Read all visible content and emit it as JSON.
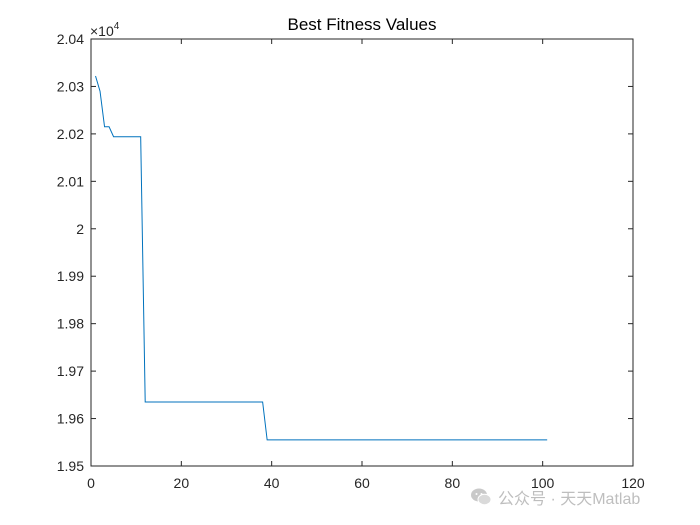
{
  "chart_data": {
    "type": "line",
    "title": "Best Fitness Values",
    "xlabel": "",
    "ylabel": "",
    "xlim": [
      0,
      120
    ],
    "ylim": [
      1.95,
      2.04
    ],
    "y_exponent_label": "×10",
    "y_exponent_power": "4",
    "x_ticks": [
      0,
      20,
      40,
      60,
      80,
      100,
      120
    ],
    "x_tick_labels": [
      "0",
      "20",
      "40",
      "60",
      "80",
      "100",
      "120"
    ],
    "y_ticks": [
      1.95,
      1.96,
      1.97,
      1.98,
      1.99,
      2.0,
      2.01,
      2.02,
      2.03,
      2.04
    ],
    "y_tick_labels": [
      "1.95",
      "1.96",
      "1.97",
      "1.98",
      "1.99",
      "2",
      "2.01",
      "2.02",
      "2.03",
      "2.04"
    ],
    "grid": false,
    "series": [
      {
        "color": "#0072BD",
        "x": [
          1,
          2,
          3,
          4,
          5,
          6,
          7,
          8,
          9,
          10,
          11,
          12,
          13,
          20,
          30,
          38,
          39,
          40,
          50,
          60,
          70,
          80,
          90,
          100,
          101
        ],
        "y": [
          2.0322,
          2.029,
          2.0215,
          2.0215,
          2.0194,
          2.0194,
          2.0194,
          2.0194,
          2.0194,
          2.0194,
          2.0194,
          1.9635,
          1.9635,
          1.9635,
          1.9635,
          1.9635,
          1.9555,
          1.9555,
          1.9555,
          1.9555,
          1.9555,
          1.9555,
          1.9555,
          1.9555,
          1.9555
        ]
      }
    ]
  },
  "watermark": {
    "text": "公众号 · 天天Matlab",
    "icon": "wechat-icon"
  }
}
